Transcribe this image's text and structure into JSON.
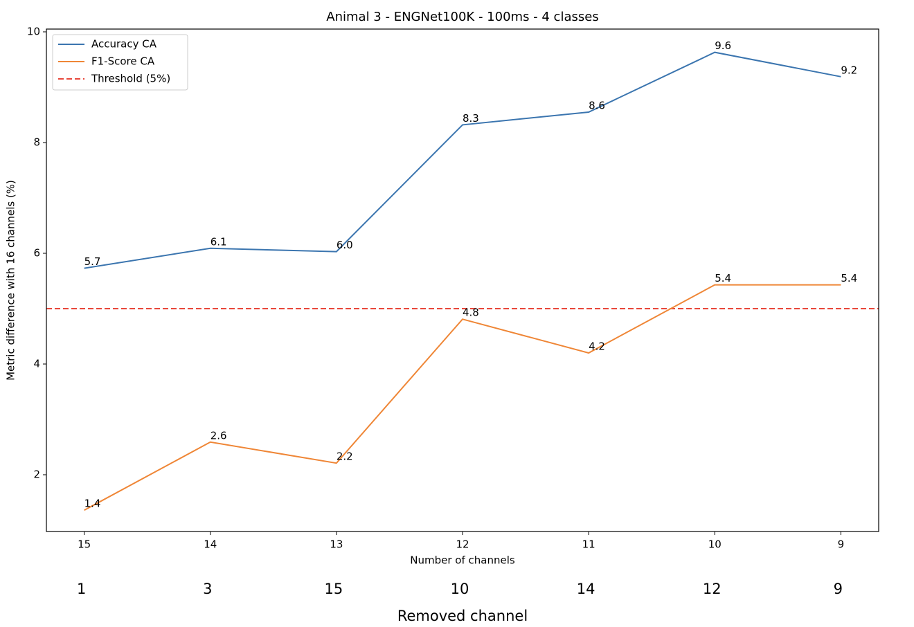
{
  "chart_data": {
    "type": "line",
    "title": "Animal 3 - ENGNet100K - 100ms - 4 classes",
    "xlabel": "Number of channels",
    "ylabel": "Metric difference with 16 channels (%)",
    "x": [
      15,
      14,
      13,
      12,
      11,
      10,
      9
    ],
    "xlim": [
      15.3,
      8.7
    ],
    "xticks": [
      15,
      14,
      13,
      12,
      11,
      10,
      9
    ],
    "ylim": [
      0.975,
      10.05
    ],
    "yticks": [
      2,
      4,
      6,
      8,
      10
    ],
    "series": [
      {
        "name": "Accuracy CA",
        "color": "#3b75af",
        "values": [
          5.73,
          6.09,
          6.03,
          8.32,
          8.55,
          9.63,
          9.19
        ],
        "value_labels": [
          "5.7",
          "6.1",
          "6.0",
          "8.3",
          "8.6",
          "9.6",
          "9.2"
        ]
      },
      {
        "name": "F1-Score CA",
        "color": "#ef8636",
        "values": [
          1.36,
          2.59,
          2.21,
          4.81,
          4.2,
          5.43,
          5.43
        ],
        "value_labels": [
          "1.4",
          "2.6",
          "2.2",
          "4.8",
          "4.2",
          "5.4",
          "5.4"
        ]
      }
    ],
    "threshold": {
      "name": "Threshold (5%)",
      "value": 5,
      "color": "#e8473b"
    },
    "legend": "upper left",
    "removed_channels": [
      "1",
      "3",
      "15",
      "10",
      "14",
      "12",
      "9"
    ],
    "removed_channel_label": "Removed channel"
  }
}
